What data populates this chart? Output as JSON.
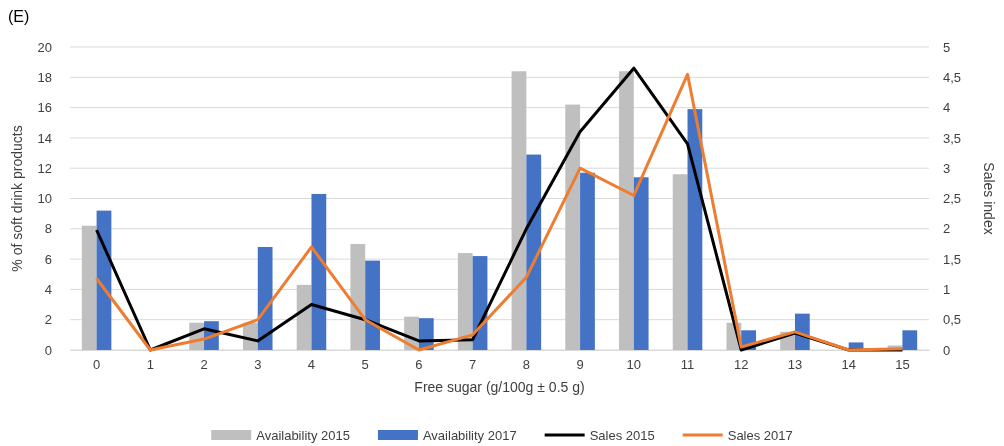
{
  "chart_data": {
    "type": "bar",
    "title": "(E)",
    "xlabel": "Free sugar (g/100g ± 0.5 g)",
    "ylabel": "% of soft drink products",
    "y2label": "Sales index",
    "categories": [
      "0",
      "1",
      "2",
      "3",
      "4",
      "5",
      "6",
      "7",
      "8",
      "9",
      "10",
      "11",
      "12",
      "13",
      "14",
      "15"
    ],
    "series": [
      {
        "name": "Availability 2015",
        "color": "#bfbfbf",
        "values": [
          8.2,
          0,
          1.8,
          1.8,
          4.3,
          7.0,
          2.2,
          6.4,
          18.4,
          16.2,
          18.4,
          11.6,
          1.8,
          1.2,
          null,
          0.3
        ]
      },
      {
        "name": "Availability 2017",
        "color": "#4472c4",
        "values": [
          9.2,
          0,
          1.9,
          6.8,
          10.3,
          5.9,
          2.1,
          6.2,
          12.9,
          11.7,
          11.4,
          15.9,
          1.3,
          2.4,
          0.5,
          1.3
        ]
      },
      {
        "name": "Sales 2015",
        "type": "line",
        "axis": "y2",
        "color": "#000000",
        "values": [
          1.98,
          0,
          0.35,
          0.15,
          0.75,
          0.5,
          0.15,
          0.17,
          2.0,
          3.6,
          4.65,
          3.4,
          0,
          0.28,
          0,
          0
        ]
      },
      {
        "name": "Sales 2017",
        "type": "line",
        "axis": "y2",
        "color": "#ed7d31",
        "values": [
          1.18,
          0,
          0.18,
          0.5,
          1.7,
          0.5,
          0,
          0.25,
          1.2,
          3.0,
          2.55,
          4.55,
          0.05,
          0.3,
          0,
          0.02
        ]
      }
    ],
    "ylim": [
      0,
      20
    ],
    "yticks": [
      0,
      2,
      4,
      6,
      8,
      10,
      12,
      14,
      16,
      18,
      20
    ],
    "y2lim": [
      0,
      5
    ],
    "y2ticks": [
      0,
      {
        "value": 0.5,
        "label": "0,5"
      },
      1,
      {
        "value": 1.5,
        "label": "1,5"
      },
      2,
      {
        "value": 2.5,
        "label": "2,5"
      },
      3,
      {
        "value": 3.5,
        "label": "3,5"
      },
      4,
      {
        "value": 4.5,
        "label": "4,5"
      },
      5
    ],
    "grid": "y",
    "legend": "bottom",
    "marker": "none",
    "line_style": "solid"
  }
}
